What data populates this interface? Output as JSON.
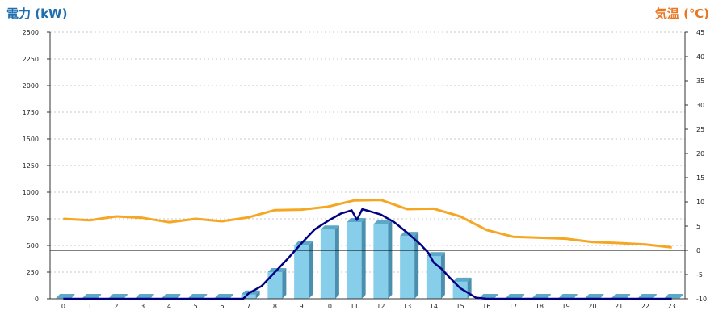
{
  "chart_data": {
    "type": "bar",
    "title": "",
    "ylabel_left": "電力 (kW)",
    "ylabel_right": "気温 (℃)",
    "categories": [
      "0",
      "1",
      "2",
      "3",
      "4",
      "5",
      "6",
      "7",
      "8",
      "9",
      "10",
      "11",
      "12",
      "13",
      "14",
      "15",
      "16",
      "17",
      "18",
      "19",
      "20",
      "21",
      "22",
      "23"
    ],
    "ylim_left": [
      0,
      2500
    ],
    "yticks_left": [
      0,
      250,
      500,
      750,
      1000,
      1250,
      1500,
      1750,
      2000,
      2250,
      2500
    ],
    "ylim_right": [
      -10,
      45
    ],
    "yticks_right": [
      -10,
      -5,
      0,
      5,
      10,
      15,
      20,
      25,
      30,
      35,
      40,
      45
    ],
    "grid": "horizontal-dashed",
    "bars": {
      "values": [
        0,
        0,
        0,
        0,
        0,
        0,
        0,
        40,
        250,
        500,
        650,
        720,
        700,
        590,
        400,
        160,
        0,
        0,
        0,
        0,
        0,
        0,
        0,
        0
      ],
      "color": "#87CEEB"
    },
    "line_power": {
      "color": "#000080",
      "x": [
        0,
        1,
        2,
        3,
        4,
        5,
        6,
        6.8,
        7,
        7.5,
        8,
        8.5,
        9,
        9.5,
        10,
        10.5,
        10.9,
        11.1,
        11.3,
        11.6,
        12,
        12.5,
        13,
        13.5,
        13.8,
        14,
        14.3,
        14.6,
        15,
        15.4,
        15.6,
        16,
        17,
        18,
        19,
        20,
        21,
        22,
        23
      ],
      "values": [
        0,
        0,
        0,
        0,
        0,
        0,
        0,
        0,
        50,
        120,
        250,
        380,
        520,
        650,
        730,
        800,
        830,
        740,
        840,
        820,
        790,
        720,
        620,
        510,
        430,
        340,
        280,
        200,
        100,
        40,
        10,
        0,
        0,
        0,
        0,
        0,
        0,
        0,
        0
      ]
    },
    "line_temperature": {
      "color": "#F5A623",
      "x": [
        0,
        1,
        2,
        3,
        4,
        5,
        6,
        7,
        8,
        9,
        10,
        11,
        12,
        13,
        14,
        15,
        16,
        17,
        18,
        19,
        20,
        21,
        22,
        23
      ],
      "values": [
        6.5,
        6.2,
        7.0,
        6.7,
        5.8,
        6.5,
        6.0,
        6.8,
        8.3,
        8.4,
        9.0,
        10.3,
        10.4,
        8.5,
        8.6,
        7.0,
        4.2,
        2.8,
        2.6,
        2.4,
        1.7,
        1.5,
        1.2,
        0.6
      ]
    },
    "zero_line_temperature": 0,
    "colors": {
      "left_axis_title": "#1F6FB0",
      "right_axis_title": "#E87722"
    }
  }
}
